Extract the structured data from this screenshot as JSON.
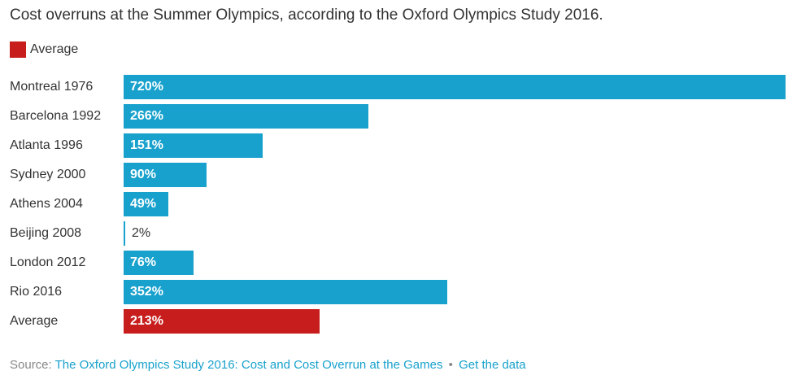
{
  "title": "Cost overruns at the Summer Olympics, according to the Oxford Olympics Study 2016.",
  "legend": {
    "label": "Average",
    "color": "#c71e1d"
  },
  "colors": {
    "default": "#18a1cd",
    "highlight": "#c71e1d"
  },
  "rows": [
    {
      "label": "Montreal 1976",
      "value": 720,
      "display": "720%",
      "highlight": false
    },
    {
      "label": "Barcelona 1992",
      "value": 266,
      "display": "266%",
      "highlight": false
    },
    {
      "label": "Atlanta 1996",
      "value": 151,
      "display": "151%",
      "highlight": false
    },
    {
      "label": "Sydney 2000",
      "value": 90,
      "display": "90%",
      "highlight": false
    },
    {
      "label": "Athens 2004",
      "value": 49,
      "display": "49%",
      "highlight": false
    },
    {
      "label": "Beijing 2008",
      "value": 2,
      "display": "2%",
      "highlight": false
    },
    {
      "label": "London 2012",
      "value": 76,
      "display": "76%",
      "highlight": false
    },
    {
      "label": "Rio 2016",
      "value": 352,
      "display": "352%",
      "highlight": false
    },
    {
      "label": "Average",
      "value": 213,
      "display": "213%",
      "highlight": true
    }
  ],
  "footer": {
    "source_label": "Source:",
    "source_link": "The Oxford Olympics Study 2016: Cost and Cost Overrun at the Games",
    "separator": "•",
    "data_link": "Get the data"
  },
  "chart_data": {
    "type": "bar",
    "orientation": "horizontal",
    "title": "Cost overruns at the Summer Olympics, according to the Oxford Olympics Study 2016.",
    "categories": [
      "Montreal 1976",
      "Barcelona 1992",
      "Atlanta 1996",
      "Sydney 2000",
      "Athens 2004",
      "Beijing 2008",
      "London 2012",
      "Rio 2016",
      "Average"
    ],
    "values": [
      720,
      266,
      151,
      90,
      49,
      2,
      76,
      352,
      213
    ],
    "unit": "%",
    "highlighted_category": "Average",
    "legend": [
      "Average"
    ],
    "legend_position": "top-left",
    "xlabel": "",
    "ylabel": "",
    "xlim": [
      0,
      720
    ],
    "grid": false,
    "source": "The Oxford Olympics Study 2016: Cost and Cost Overrun at the Games"
  }
}
